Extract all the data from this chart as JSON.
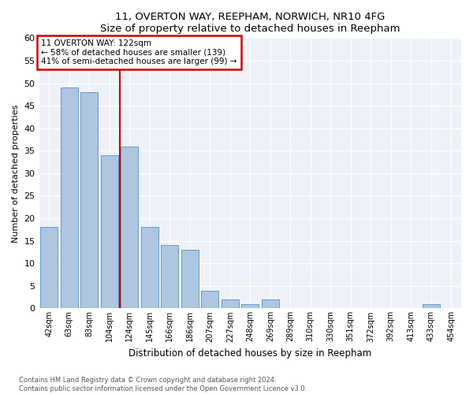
{
  "title1": "11, OVERTON WAY, REEPHAM, NORWICH, NR10 4FG",
  "title2": "Size of property relative to detached houses in Reepham",
  "xlabel": "Distribution of detached houses by size in Reepham",
  "ylabel": "Number of detached properties",
  "categories": [
    "42sqm",
    "63sqm",
    "83sqm",
    "104sqm",
    "124sqm",
    "145sqm",
    "166sqm",
    "186sqm",
    "207sqm",
    "227sqm",
    "248sqm",
    "269sqm",
    "289sqm",
    "310sqm",
    "330sqm",
    "351sqm",
    "372sqm",
    "392sqm",
    "413sqm",
    "433sqm",
    "454sqm"
  ],
  "values": [
    18,
    49,
    48,
    34,
    36,
    18,
    14,
    13,
    4,
    2,
    1,
    2,
    0,
    0,
    0,
    0,
    0,
    0,
    0,
    1,
    0
  ],
  "bar_color": "#aec6df",
  "bar_edge_color": "#6699cc",
  "annotation_text_line1": "11 OVERTON WAY: 122sqm",
  "annotation_text_line2": "← 58% of detached houses are smaller (139)",
  "annotation_text_line3": "41% of semi-detached houses are larger (99) →",
  "annotation_box_color": "#ffffff",
  "annotation_box_edge": "#cc0000",
  "vline_color": "#cc0000",
  "ylim": [
    0,
    60
  ],
  "yticks": [
    0,
    5,
    10,
    15,
    20,
    25,
    30,
    35,
    40,
    45,
    50,
    55,
    60
  ],
  "footer1": "Contains HM Land Registry data © Crown copyright and database right 2024.",
  "footer2": "Contains public sector information licensed under the Open Government Licence v3.0.",
  "bg_color": "#eef2f8"
}
